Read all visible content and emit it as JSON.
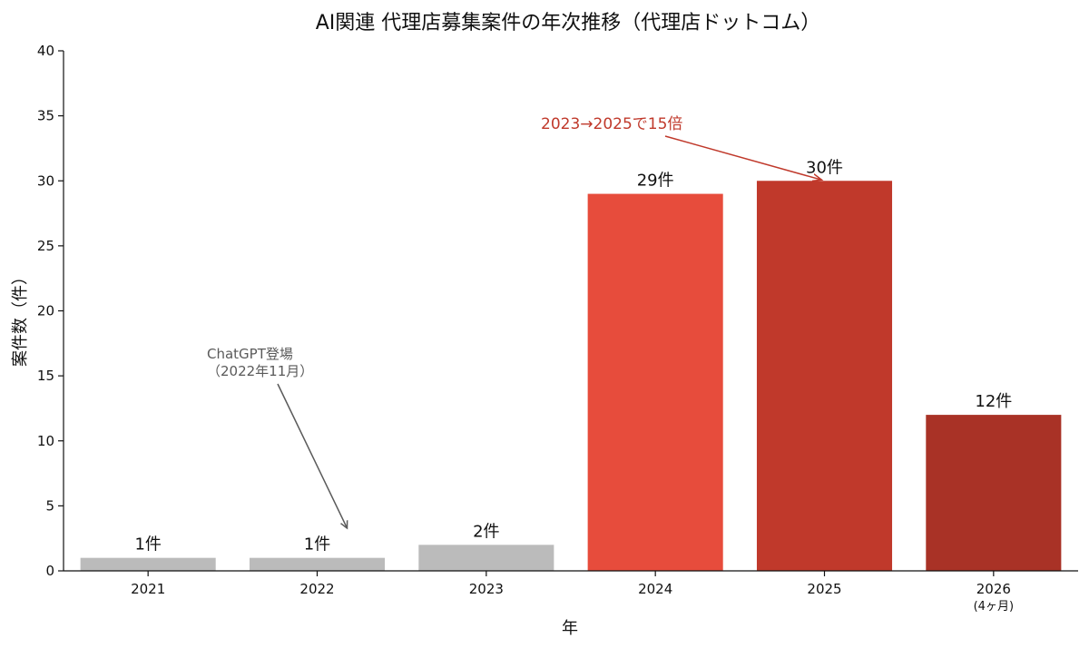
{
  "chart_data": {
    "type": "bar",
    "title": "AI関連 代理店募集案件の年次推移（代理店ドットコム）",
    "xlabel": "年",
    "ylabel": "案件数（件）",
    "ylim": [
      0,
      40
    ],
    "yticks": [
      0,
      5,
      10,
      15,
      20,
      25,
      30,
      35,
      40
    ],
    "categories": [
      "2021",
      "2022",
      "2023",
      "2024",
      "2025",
      "2026"
    ],
    "category_sublabels": [
      "",
      "",
      "",
      "",
      "",
      "(4ヶ月)"
    ],
    "values": [
      1,
      1,
      2,
      29,
      30,
      12
    ],
    "data_labels": [
      "1件",
      "1件",
      "2件",
      "29件",
      "30件",
      "12件"
    ],
    "bar_colors": [
      "#bbbbbb",
      "#bbbbbb",
      "#bbbbbb",
      "#e74c3c",
      "#c0392b",
      "#a93226"
    ],
    "grid": false,
    "annotations": [
      {
        "lines": [
          "ChatGPT登場",
          "（2022年11月）"
        ],
        "target": {
          "x": "2022",
          "y": 3
        },
        "color": "#5a5a5a"
      },
      {
        "lines": [
          "2023→2025で15倍"
        ],
        "target": {
          "x": "2025",
          "y": 30
        },
        "color": "#c0392b"
      }
    ]
  }
}
